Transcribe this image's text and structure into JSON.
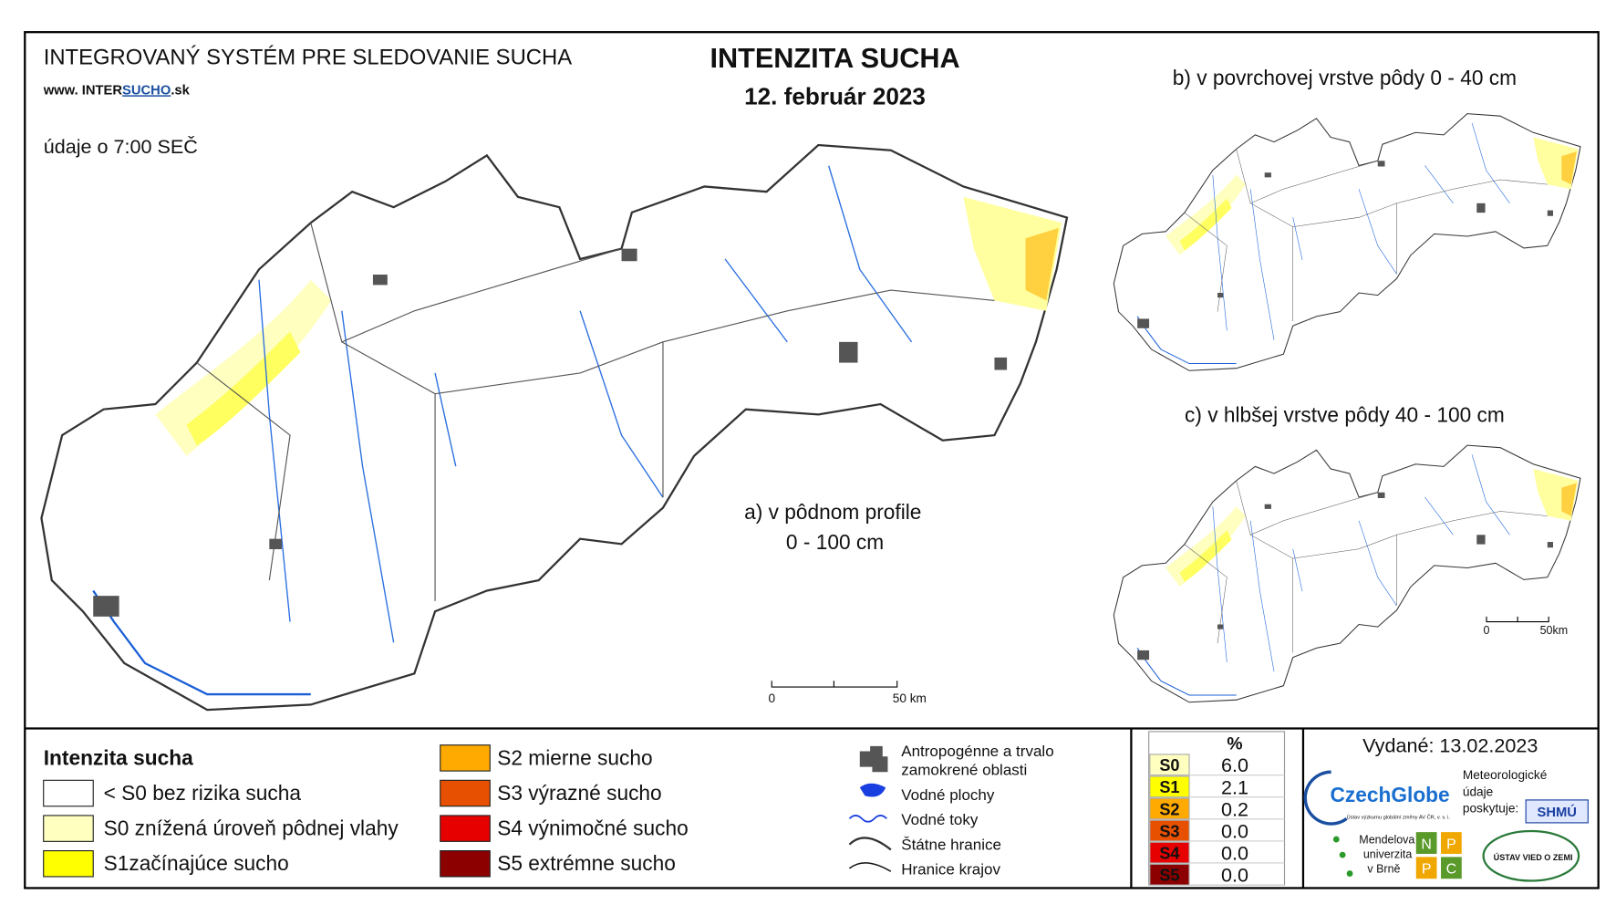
{
  "header": {
    "system_title": "INTEGROVANÝ SYSTÉM PRE SLEDOVANIE SUCHA",
    "website": [
      "www. INTER",
      "SUCHO",
      ".sk"
    ],
    "time_note": "údaje o 7:00 SEČ",
    "title": "INTENZITA SUCHA",
    "date": "12. február 2023"
  },
  "maps": {
    "main_label": "a) v pôdnom profile",
    "main_depth": "0 - 100 cm",
    "b_label": "b) v povrchovej vrstve pôdy 0 - 40 cm",
    "c_label": "c) v hlbšej vrstve pôdy 40 - 100 cm"
  },
  "scale": {
    "main": [
      "0",
      "50 km"
    ],
    "small": [
      "0",
      "50km"
    ]
  },
  "legend": {
    "title": "Intenzita sucha",
    "classes": [
      {
        "label": "< S0 bez rizika sucha",
        "color": "#ffffff"
      },
      {
        "label": "S0 znížená úroveň pôdnej vlahy",
        "color": "#ffffc0"
      },
      {
        "label": "S1začínajúce sucho",
        "color": "#ffff00"
      },
      {
        "label": "S2 mierne sucho",
        "color": "#ffaa00"
      },
      {
        "label": "S3 výrazné sucho",
        "color": "#e65000"
      },
      {
        "label": "S4 výnimočné sucho",
        "color": "#e60000"
      },
      {
        "label": "S5 extrémne sucho",
        "color": "#8c0000"
      }
    ]
  },
  "symbols": [
    "Antropogénne a trvalo",
    "zamokrené oblasti",
    "Vodné plochy",
    "Vodné toky",
    "Štátne hranice",
    "Hranice krajov"
  ],
  "table": {
    "header": "%",
    "rows": [
      {
        "class": "S0",
        "value": "6.0",
        "color": "#ffffc0"
      },
      {
        "class": "S1",
        "value": "2.1",
        "color": "#ffff00"
      },
      {
        "class": "S2",
        "value": "0.2",
        "color": "#ffaa00"
      },
      {
        "class": "S3",
        "value": "0.0",
        "color": "#e65000"
      },
      {
        "class": "S4",
        "value": "0.0",
        "color": "#e60000"
      },
      {
        "class": "S5",
        "value": "0.0",
        "color": "#8c0000"
      }
    ]
  },
  "issued": "Vydané: 13.02.2023",
  "logos": {
    "czechglobe": "CzechGlobe",
    "czechglobe_sub": "Ústav výzkumu globální změny AV ČR, v. v. i.",
    "meteo": [
      "Meteorologické",
      "údaje",
      "poskytuje:"
    ],
    "shmu": "SHMÚ",
    "mendel": [
      "Mendelova",
      "univerzita",
      "v Brně"
    ],
    "nppc": [
      "N",
      "P",
      "P",
      "C"
    ],
    "uvz": "ÚSTAV VIED O ZEMI"
  }
}
